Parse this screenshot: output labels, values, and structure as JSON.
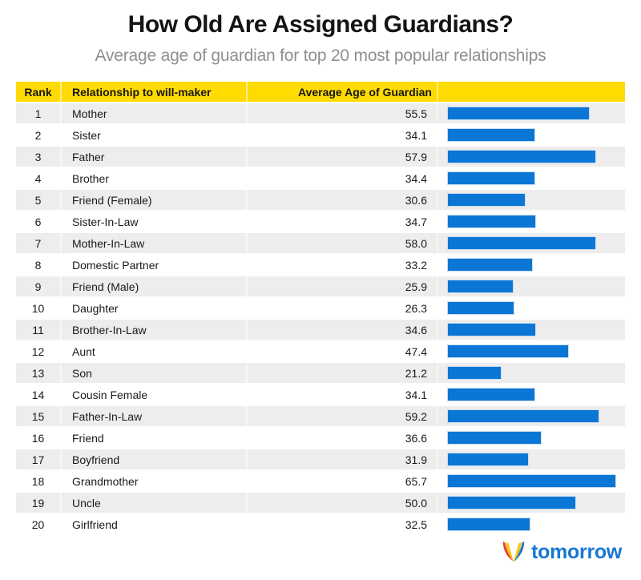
{
  "title": "How Old Are Assigned Guardians?",
  "subtitle": "Average age of guardian for top 20 most popular relationships",
  "table_headers": {
    "rank": "Rank",
    "relationship": "Relationship to will-maker",
    "value": "Average Age of Guardian"
  },
  "chart_data": {
    "type": "bar",
    "orientation": "horizontal",
    "title": "How Old Are Assigned Guardians?",
    "subtitle": "Average age of guardian for top 20 most popular relationships",
    "columns": [
      "Rank",
      "Relationship to will-maker",
      "Average Age of Guardian"
    ],
    "ranks": [
      1,
      2,
      3,
      4,
      5,
      6,
      7,
      8,
      9,
      10,
      11,
      12,
      13,
      14,
      15,
      16,
      17,
      18,
      19,
      20
    ],
    "categories": [
      "Mother",
      "Sister",
      "Father",
      "Brother",
      "Friend (Female)",
      "Sister-In-Law",
      "Mother-In-Law",
      "Domestic Partner",
      "Friend (Male)",
      "Daughter",
      "Brother-In-Law",
      "Aunt",
      "Son",
      "Cousin Female",
      "Father-In-Law",
      "Friend",
      "Boyfriend",
      "Grandmother",
      "Uncle",
      "Girlfriend"
    ],
    "values": [
      55.5,
      34.1,
      57.9,
      34.4,
      30.6,
      34.7,
      58.0,
      33.2,
      25.9,
      26.3,
      34.6,
      47.4,
      21.2,
      34.1,
      59.2,
      36.6,
      31.9,
      65.7,
      50.0,
      32.5
    ],
    "xlim": [
      0,
      65.7
    ],
    "value_decimals": 1,
    "grid": false,
    "legend": "none",
    "row_striping": "alternate gray starting at rank 1"
  },
  "colors": {
    "header_bg": "#ffdb00",
    "row_alt_bg": "#ededed",
    "bar_fill": "#0b76d4",
    "bar_outline": "#c9ddf2",
    "title_text": "#141414",
    "subtitle_text": "#8f8f8f",
    "logo_blue": "#1877d4",
    "logo_red": "#e8402d",
    "logo_yellow": "#ffc510"
  },
  "logo": {
    "brand": "tomorrow",
    "icon": "tulip-logo-icon"
  }
}
